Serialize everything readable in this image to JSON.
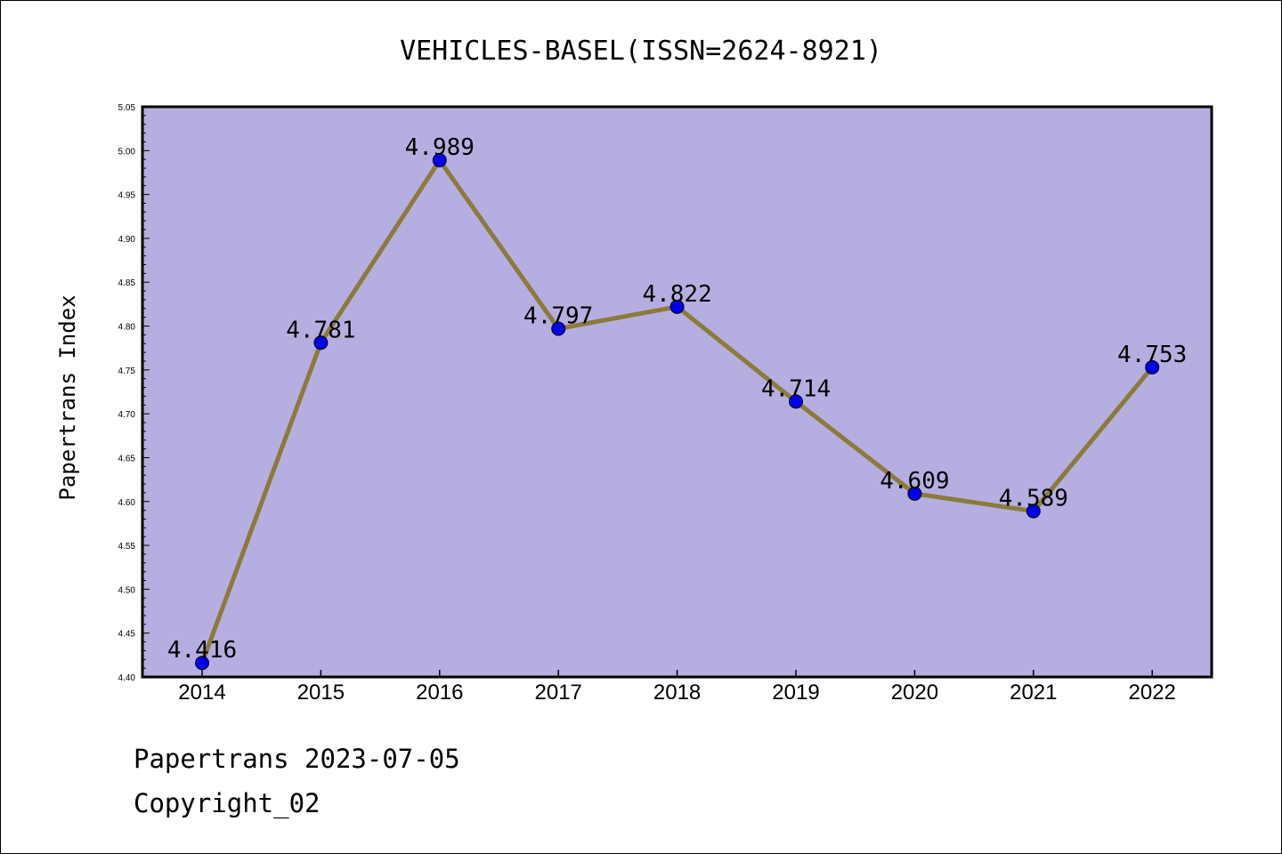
{
  "chart_data": {
    "type": "line",
    "title": "VEHICLES-BASEL(ISSN=2624-8921)",
    "xlabel": "",
    "ylabel": "Papertrans Index",
    "categories": [
      "2014",
      "2015",
      "2016",
      "2017",
      "2018",
      "2019",
      "2020",
      "2021",
      "2022"
    ],
    "values": [
      4.416,
      4.781,
      4.989,
      4.797,
      4.822,
      4.714,
      4.609,
      4.589,
      4.753
    ],
    "data_labels": [
      "4.416",
      "4.781",
      "4.989",
      "4.797",
      "4.822",
      "4.714",
      "4.609",
      "4.589",
      "4.753"
    ],
    "ylim": [
      4.4,
      5.05
    ],
    "yticks": [
      "4.40",
      "4.45",
      "4.50",
      "4.55",
      "4.60",
      "4.65",
      "4.70",
      "4.75",
      "4.80",
      "4.85",
      "4.90",
      "4.95",
      "5.00",
      "5.05"
    ],
    "grid": false,
    "colors": {
      "plot_bg": "#b5afe1",
      "line": "#8c7a3a",
      "marker": "#0000ee"
    }
  },
  "footer": {
    "line1": "Papertrans 2023-07-05",
    "line2": "Copyright_02"
  }
}
